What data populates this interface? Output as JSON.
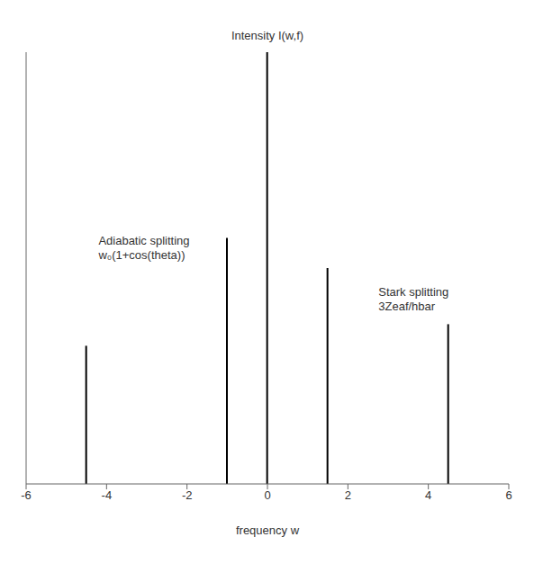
{
  "chart_data": {
    "type": "stem",
    "xlabel": "frequency w",
    "ylabel": "Intensity I(w,f)",
    "x": [
      -4.5,
      -1.0,
      0.0,
      1.5,
      4.5
    ],
    "values": [
      0.32,
      0.57,
      1.0,
      0.5,
      0.37
    ],
    "color": "#000000",
    "xlim": [
      -6,
      6
    ],
    "ylim": [
      0,
      1.0
    ],
    "xticks": [
      -6,
      -4,
      -2,
      0,
      2,
      4,
      6
    ],
    "tick_labels": "x",
    "annotations": [
      "Adiabatic splitting\nw₀(1+cos(theta))",
      "Stark splitting\n3Zeaf/hbar"
    ]
  }
}
